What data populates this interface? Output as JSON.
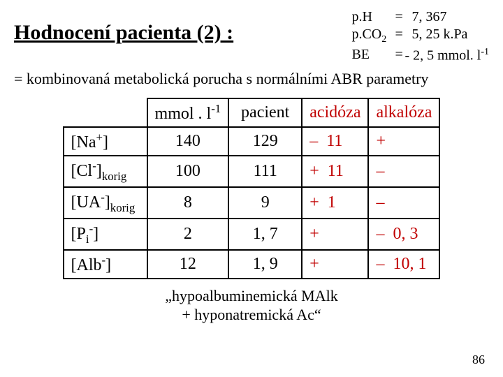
{
  "title": "Hodnocení pacienta (2) :",
  "abr": [
    {
      "label_html": "p.H",
      "val_html": "&nbsp;&nbsp;7, 367"
    },
    {
      "label_html": "p.CO<sub>2</sub>",
      "val_html": "&nbsp;&nbsp;5, 25  k.Pa"
    },
    {
      "label_html": "BE",
      "val_html": "- 2, 5 mmol. l<sup>-1</sup>"
    }
  ],
  "subtitle": "= kombinovaná metabolická porucha s normálními ABR parametry",
  "headers": {
    "col1": "mmol . l",
    "col1_sup": "-1",
    "col2": "pacient",
    "col3": "acidóza",
    "col4": "alkalóza"
  },
  "rows": [
    {
      "label_html": "[Na<sup>+</sup>]",
      "mmol": "140",
      "pac": "129",
      "ac_sign": "–",
      "ac_val": "11",
      "alk_sign": "+",
      "alk_val": ""
    },
    {
      "label_html": "[Cl<sup>-</sup>]<sub>korig</sub>",
      "mmol": "100",
      "pac": "111",
      "ac_sign": "+",
      "ac_val": "11",
      "alk_sign": "–",
      "alk_val": ""
    },
    {
      "label_html": "[UA<sup>-</sup>]<sub>korig</sub>",
      "mmol": "8",
      "pac": "9",
      "ac_sign": "+",
      "ac_val": "1",
      "alk_sign": "–",
      "alk_val": ""
    },
    {
      "label_html": "[P<sub>i</sub><sup>-</sup>]",
      "mmol": "2",
      "pac": "1, 7",
      "ac_sign": "+",
      "ac_val": "",
      "alk_sign": "–",
      "alk_val": "0, 3"
    },
    {
      "label_html": "[Alb<sup>-</sup>]",
      "mmol": "12",
      "pac": "1, 9",
      "ac_sign": "+",
      "ac_val": "",
      "alk_sign": "–",
      "alk_val": "10, 1"
    }
  ],
  "colors": {
    "red": "#c00000",
    "border": "#000000"
  },
  "quote_line1": "„hypoalbuminemická MAlk",
  "quote_line2": "+ hyponatremická Ac“",
  "page": "86"
}
